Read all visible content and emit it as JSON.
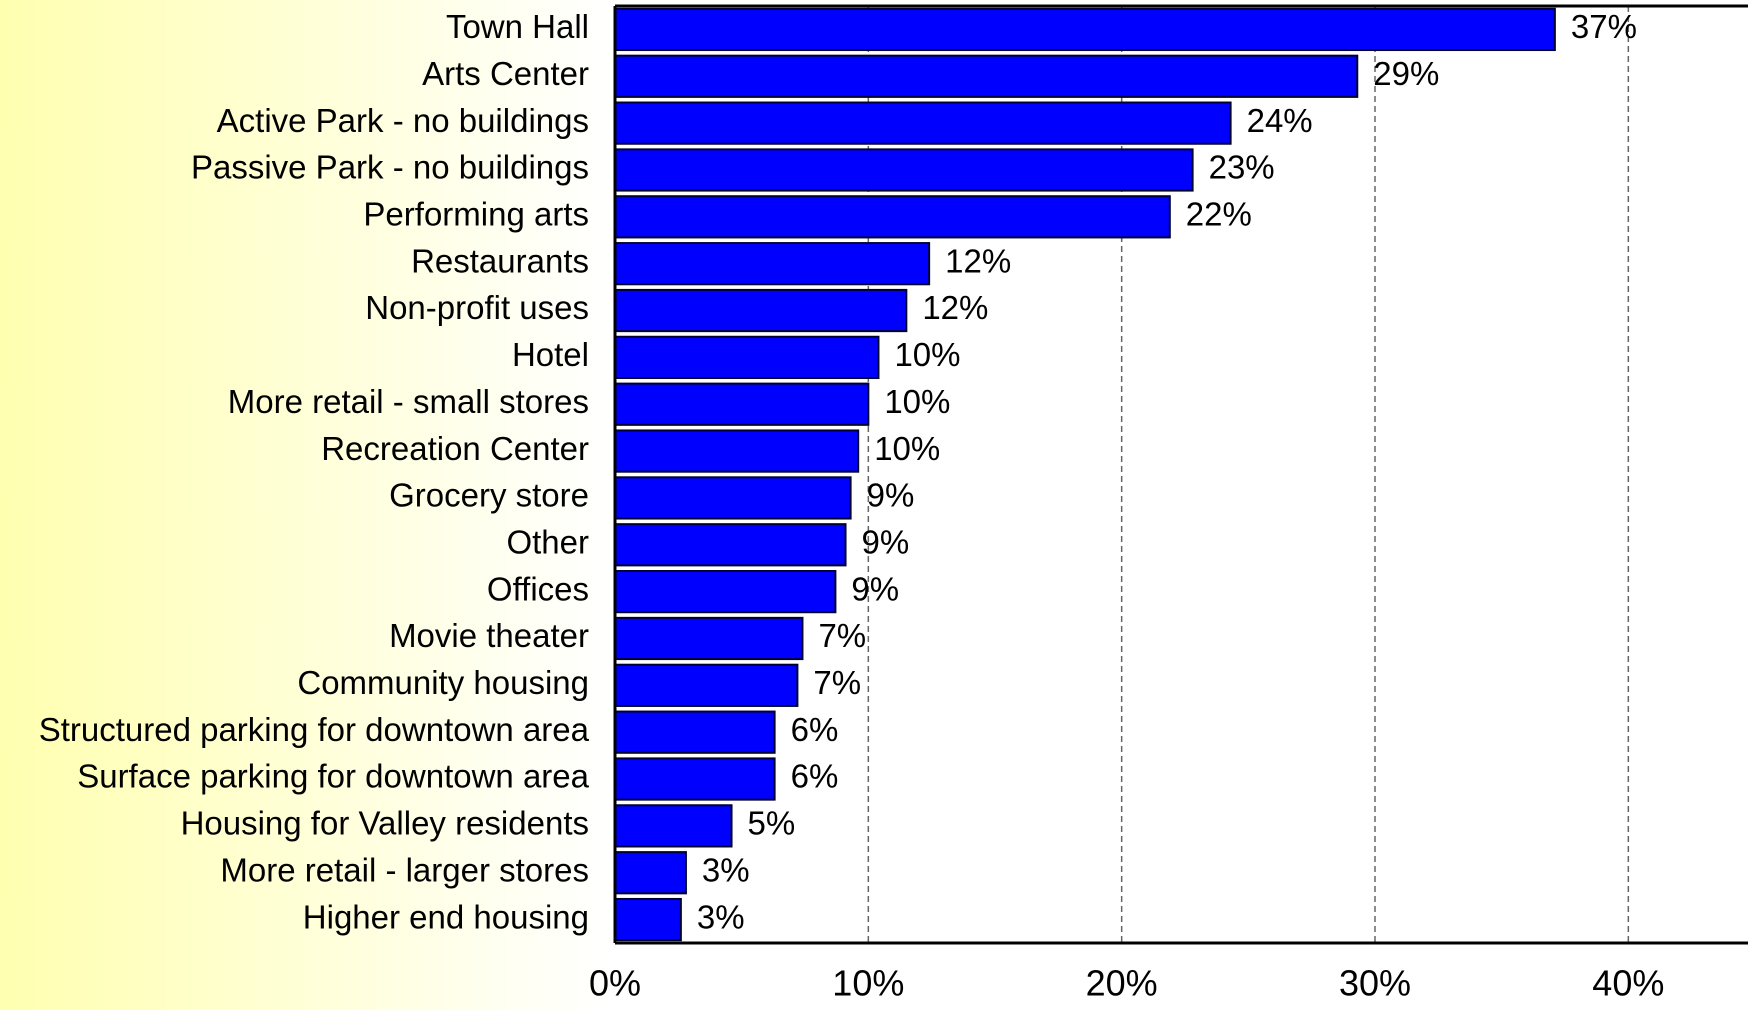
{
  "chart_data": {
    "type": "bar",
    "orientation": "horizontal",
    "categories": [
      "Town Hall",
      "Arts Center",
      "Active Park - no buildings",
      "Passive Park - no buildings",
      "Performing arts",
      "Restaurants",
      "Non-profit uses",
      "Hotel",
      "More retail - small stores",
      "Recreation Center",
      "Grocery store",
      "Other",
      "Offices",
      "Movie theater",
      "Community housing",
      "Structured parking for downtown area",
      "Surface parking for downtown area",
      "Housing for Valley residents",
      "More retail - larger stores",
      "Higher end housing"
    ],
    "values": [
      37.1,
      29.3,
      24.3,
      22.8,
      21.9,
      12.4,
      11.5,
      10.4,
      10.0,
      9.6,
      9.3,
      9.1,
      8.7,
      7.4,
      7.2,
      6.3,
      6.3,
      4.6,
      2.8,
      2.6
    ],
    "value_labels": [
      "37%",
      "29%",
      "24%",
      "23%",
      "22%",
      "12%",
      "12%",
      "10%",
      "10%",
      "10%",
      "9%",
      "9%",
      "9%",
      "7%",
      "7%",
      "6%",
      "6%",
      "5%",
      "3%",
      "3%"
    ],
    "color": "#0000ff",
    "xlim": [
      0,
      45
    ],
    "xticks": [
      {
        "value": 0,
        "label": "0%"
      },
      {
        "value": 10,
        "label": "10%"
      },
      {
        "value": 20,
        "label": "20%"
      },
      {
        "value": 30,
        "label": "30%"
      },
      {
        "value": 40,
        "label": "40%"
      }
    ],
    "grid": true
  }
}
